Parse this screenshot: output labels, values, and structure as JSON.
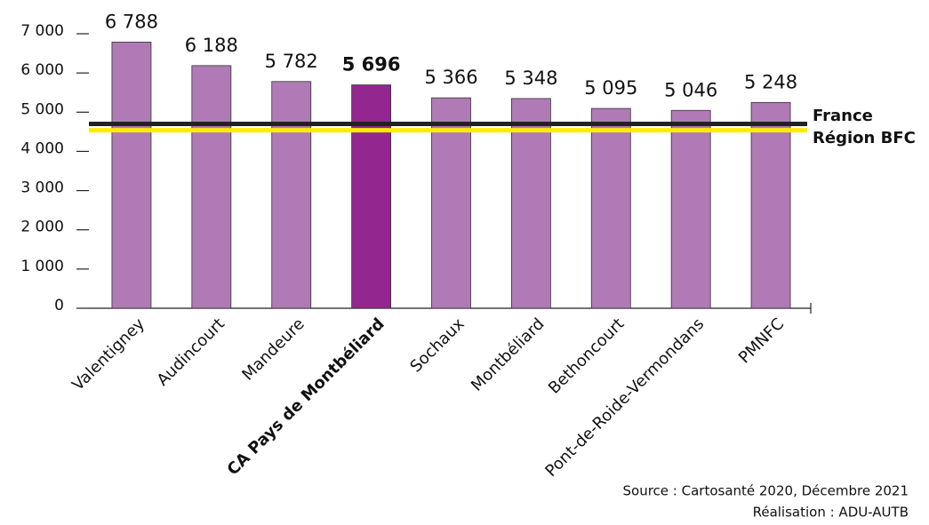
{
  "chart_data": {
    "type": "bar",
    "categories": [
      "Valentigney",
      "Audincourt",
      "Mandeure",
      "CA Pays de Montbéliard",
      "Sochaux",
      "Montbéliard",
      "Bethoncourt",
      "Pont-de-Roide-Vermondans",
      "PMNFC"
    ],
    "values": [
      6788,
      6188,
      5782,
      5696,
      5366,
      5348,
      5095,
      5046,
      5248
    ],
    "value_labels": [
      "6 788",
      "6 188",
      "5 782",
      "5 696",
      "5 366",
      "5 348",
      "5 095",
      "5 046",
      "5 248"
    ],
    "color": "#b07ab6",
    "highlight_color": "#93278f",
    "highlight_index": 3,
    "ylim": [
      0,
      7000
    ],
    "yticks": [
      0,
      {
        "value": 1000,
        "label": "1 000"
      },
      {
        "value": 2000,
        "label": "2 000"
      },
      {
        "value": 3000,
        "label": "3 000"
      },
      {
        "value": 4000,
        "label": "4 000"
      },
      {
        "value": 5000,
        "label": "5 000"
      },
      {
        "value": 6000,
        "label": "6 000"
      },
      {
        "value": 7000,
        "label": "7 000"
      }
    ],
    "grid": false,
    "reference_lines": [
      {
        "name": "France",
        "value": 4700,
        "color": "#222222"
      },
      {
        "name": "Région BFC",
        "value": 4540,
        "color": "#ffec00"
      }
    ],
    "source": "Source : Cartosanté 2020, Décembre 2021",
    "credit": "Réalisation : ADU-AUTB"
  }
}
